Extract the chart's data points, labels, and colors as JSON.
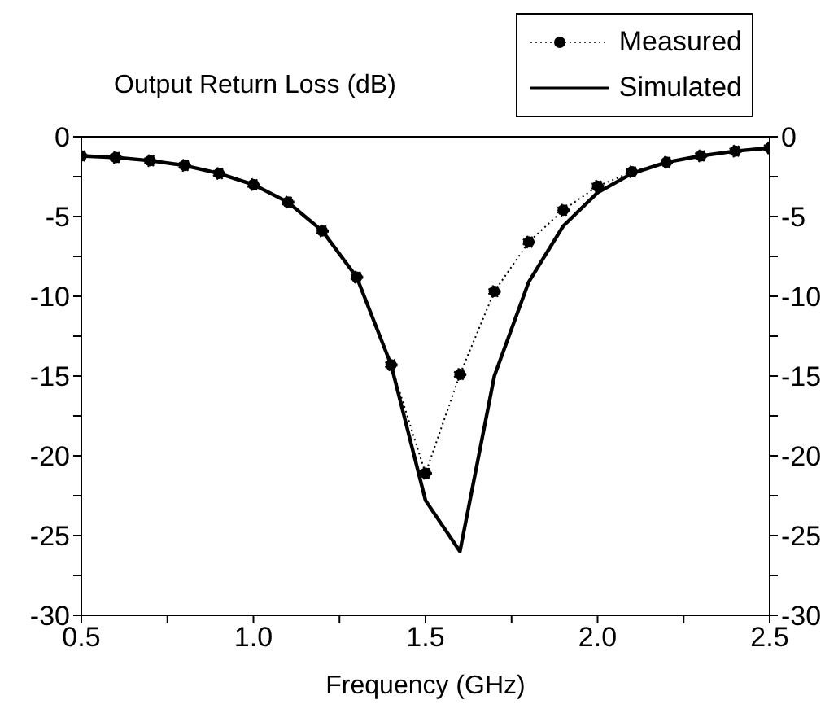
{
  "chart_data": {
    "type": "line",
    "title": "Output Return Loss (dB)",
    "xlabel": "Frequency (GHz)",
    "x": [
      0.5,
      0.6,
      0.7,
      0.8,
      0.9,
      1.0,
      1.1,
      1.2,
      1.3,
      1.4,
      1.5,
      1.6,
      1.7,
      1.8,
      1.9,
      2.0,
      2.1,
      2.2,
      2.3,
      2.4,
      2.5
    ],
    "series": [
      {
        "name": "Measured",
        "color": "#000000",
        "marker": "circle",
        "line_style": "dotted",
        "values": [
          -1.2,
          -1.3,
          -1.5,
          -1.8,
          -2.3,
          -3.0,
          -4.1,
          -5.9,
          -8.8,
          -14.3,
          -21.1,
          -14.9,
          -9.7,
          -6.6,
          -4.6,
          -3.1,
          -2.2,
          -1.6,
          -1.2,
          -0.9,
          -0.7
        ]
      },
      {
        "name": "Simulated",
        "color": "#000000",
        "marker": "none",
        "line_style": "solid",
        "values": [
          -1.2,
          -1.3,
          -1.5,
          -1.8,
          -2.3,
          -3.0,
          -4.1,
          -5.9,
          -8.8,
          -14.3,
          -22.8,
          -26.0,
          -15.0,
          -9.1,
          -5.6,
          -3.5,
          -2.3,
          -1.6,
          -1.2,
          -0.9,
          -0.7
        ]
      }
    ],
    "xlim": [
      0.5,
      2.5
    ],
    "xticks": [
      0.5,
      {
        "value": 0.75,
        "label": null
      },
      {
        "value": 1,
        "label": "1.0"
      },
      {
        "value": 1.25,
        "label": null
      },
      1.5,
      {
        "value": 1.75,
        "label": null
      },
      {
        "value": 2,
        "label": "2.0"
      },
      {
        "value": 2.25,
        "label": null
      },
      2.5
    ],
    "ylim": [
      -30,
      0
    ],
    "yticks": [
      -30,
      {
        "value": -27.5,
        "label": null
      },
      -25,
      {
        "value": -22.5,
        "label": null
      },
      -20,
      {
        "value": -17.5,
        "label": null
      },
      -15,
      {
        "value": -12.5,
        "label": null
      },
      -10,
      {
        "value": -7.5,
        "label": null
      },
      -5,
      {
        "value": -2.5,
        "label": null
      },
      0
    ],
    "y2lim": [
      -30,
      0
    ],
    "y2ticks": [
      -30,
      {
        "value": -27.5,
        "label": null
      },
      -25,
      {
        "value": -22.5,
        "label": null
      },
      -20,
      {
        "value": -17.5,
        "label": null
      },
      -15,
      {
        "value": -12.5,
        "label": null
      },
      -10,
      {
        "value": -7.5,
        "label": null
      },
      -5,
      {
        "value": -2.5,
        "label": null
      },
      0
    ],
    "grid": false,
    "legend": "top right"
  }
}
